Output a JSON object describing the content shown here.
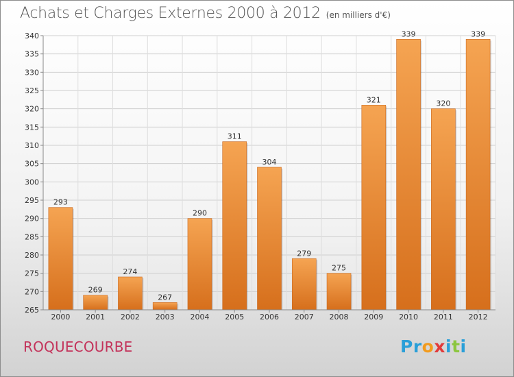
{
  "title": "Achats et Charges Externes 2000 à 2012",
  "unit_note": "(en milliers d'€)",
  "commune": "ROQUECOURBE",
  "logo": {
    "letters": [
      "P",
      "r",
      "o",
      "x",
      "i",
      "t",
      "i"
    ],
    "colors": [
      "#2a9fd8",
      "#2a9fd8",
      "#f29b1d",
      "#e23a3a",
      "#2a9fd8",
      "#8cc63f",
      "#2a9fd8"
    ]
  },
  "colors": {
    "bar_top": "#f5a452",
    "bar_bottom": "#d66f1c",
    "title": "#555555",
    "commune": "#c3325a"
  },
  "chart_data": {
    "type": "bar",
    "categories": [
      "2000",
      "2001",
      "2002",
      "2003",
      "2004",
      "2005",
      "2006",
      "2007",
      "2008",
      "2009",
      "2010",
      "2011",
      "2012"
    ],
    "values": [
      293,
      269,
      274,
      267,
      290,
      311,
      304,
      279,
      275,
      321,
      339,
      320,
      339
    ],
    "ylim": [
      265,
      340
    ],
    "yticks": [
      265,
      270,
      275,
      280,
      285,
      290,
      295,
      300,
      305,
      310,
      315,
      320,
      325,
      330,
      335,
      340
    ],
    "grid": true,
    "data_labels": true
  }
}
